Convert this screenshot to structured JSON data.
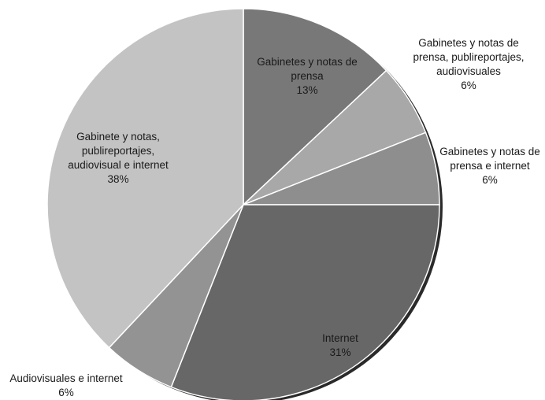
{
  "chart_data": {
    "type": "pie",
    "title": "",
    "slices": [
      {
        "label_lines": [
          "Gabinetes y notas de",
          "prensa"
        ],
        "percent_label": "13%",
        "value": 13,
        "color": "#787878"
      },
      {
        "label_lines": [
          "Gabinetes y notas de",
          "prensa, publireportajes,",
          "audiovisuales"
        ],
        "percent_label": "6%",
        "value": 6,
        "color": "#a8a8a8"
      },
      {
        "label_lines": [
          "Gabinetes y notas de",
          "prensa e internet"
        ],
        "percent_label": "6%",
        "value": 6,
        "color": "#8e8e8e"
      },
      {
        "label_lines": [
          "Internet"
        ],
        "percent_label": "31%",
        "value": 31,
        "color": "#676767"
      },
      {
        "label_lines": [
          "Audiovisuales e internet"
        ],
        "percent_label": "6%",
        "value": 6,
        "color": "#939393"
      },
      {
        "label_lines": [
          "Gabinete y notas,",
          "publireportajes,",
          "audiovisual e internet"
        ],
        "percent_label": "38%",
        "value": 38,
        "color": "#c3c3c3"
      }
    ],
    "shadow_color": "#2a2a2a",
    "label_color": "#1a1a1a"
  }
}
